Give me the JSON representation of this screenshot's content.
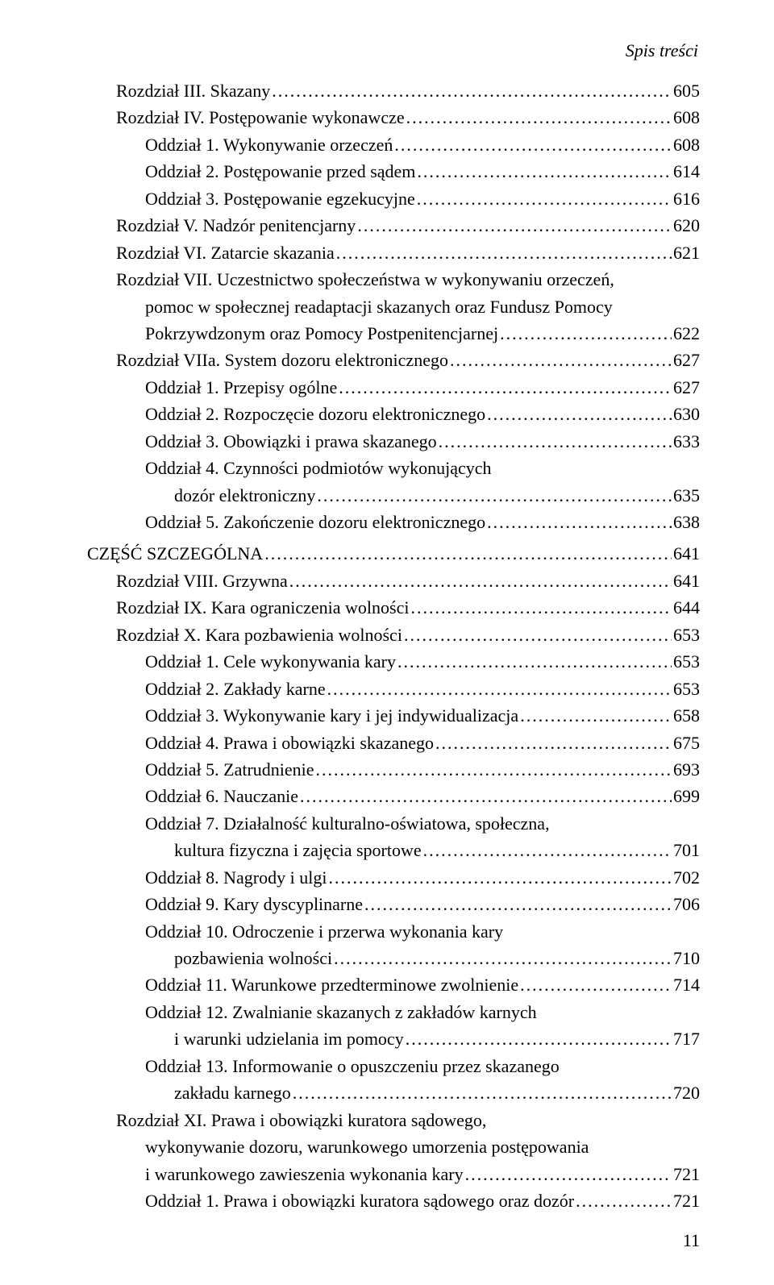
{
  "header": "Spis treści",
  "page_number": "11",
  "entries": [
    {
      "indent": 1,
      "label": "Rozdział III. Skazany",
      "page": "605"
    },
    {
      "indent": 1,
      "label": "Rozdział IV. Postępowanie wykonawcze",
      "page": "608"
    },
    {
      "indent": 2,
      "label": "Oddział 1. Wykonywanie orzeczeń",
      "page": "608"
    },
    {
      "indent": 2,
      "label": "Oddział 2. Postępowanie przed sądem",
      "page": "614"
    },
    {
      "indent": 2,
      "label": "Oddział 3. Postępowanie egzekucyjne",
      "page": "616"
    },
    {
      "indent": 1,
      "label": "Rozdział V. Nadzór penitencjarny",
      "page": "620"
    },
    {
      "indent": 1,
      "label": "Rozdział VI. Zatarcie skazania",
      "page": "621"
    },
    {
      "indent": 1,
      "multiline": true,
      "lines": [
        "Rozdział VII. Uczestnictwo społeczeństwa w wykonywaniu orzeczeń,",
        "pomoc w społecznej readaptacji skazanych oraz Fundusz Pomocy",
        "Pokrzywdzonym oraz Pomocy Postpenitencjarnej"
      ],
      "page": "622"
    },
    {
      "indent": 1,
      "label": "Rozdział VIIa. System dozoru elektronicznego",
      "page": "627"
    },
    {
      "indent": 2,
      "label": "Oddział 1. Przepisy ogólne",
      "page": "627"
    },
    {
      "indent": 2,
      "label": "Oddział 2. Rozpoczęcie dozoru elektronicznego",
      "page": "630"
    },
    {
      "indent": 2,
      "label": "Oddział 3. Obowiązki i prawa skazanego",
      "page": "633"
    },
    {
      "indent": 2,
      "multiline": true,
      "lines": [
        "Oddział 4. Czynności podmiotów wykonujących",
        "dozór elektroniczny"
      ],
      "page": "635"
    },
    {
      "indent": 2,
      "label": "Oddział 5. Zakończenie dozoru elektronicznego",
      "page": "638"
    },
    {
      "indent": 0,
      "label": "CZĘŚĆ SZCZEGÓLNA",
      "page": "641",
      "spaceBefore": true
    },
    {
      "indent": 1,
      "label": "Rozdział VIII. Grzywna",
      "page": "641"
    },
    {
      "indent": 1,
      "label": "Rozdział IX. Kara ograniczenia wolności",
      "page": "644"
    },
    {
      "indent": 1,
      "label": "Rozdział X. Kara pozbawienia wolności",
      "page": "653"
    },
    {
      "indent": 2,
      "label": "Oddział 1. Cele wykonywania kary",
      "page": "653"
    },
    {
      "indent": 2,
      "label": "Oddział 2. Zakłady karne",
      "page": "653"
    },
    {
      "indent": 2,
      "label": "Oddział 3. Wykonywanie kary i jej indywidualizacja",
      "page": "658"
    },
    {
      "indent": 2,
      "label": "Oddział 4. Prawa i obowiązki skazanego",
      "page": "675"
    },
    {
      "indent": 2,
      "label": "Oddział 5. Zatrudnienie",
      "page": "693"
    },
    {
      "indent": 2,
      "label": "Oddział 6. Nauczanie",
      "page": "699"
    },
    {
      "indent": 2,
      "multiline": true,
      "lines": [
        "Oddział 7. Działalność kulturalno-oświatowa, społeczna,",
        "kultura fizyczna i zajęcia sportowe"
      ],
      "page": "701"
    },
    {
      "indent": 2,
      "label": "Oddział 8. Nagrody i ulgi",
      "page": "702"
    },
    {
      "indent": 2,
      "label": "Oddział 9. Kary dyscyplinarne",
      "page": "706"
    },
    {
      "indent": 2,
      "multiline": true,
      "lines": [
        "Oddział 10. Odroczenie i przerwa wykonania kary",
        "pozbawienia wolności"
      ],
      "page": "710"
    },
    {
      "indent": 2,
      "label": "Oddział 11. Warunkowe przedterminowe zwolnienie",
      "page": "714"
    },
    {
      "indent": 2,
      "multiline": true,
      "lines": [
        "Oddział 12. Zwalnianie skazanych z zakładów karnych",
        "i warunki udzielania im pomocy"
      ],
      "page": "717"
    },
    {
      "indent": 2,
      "multiline": true,
      "lines": [
        "Oddział 13. Informowanie o opuszczeniu przez skazanego",
        "zakładu karnego"
      ],
      "page": "720"
    },
    {
      "indent": 1,
      "multiline": true,
      "lines": [
        "Rozdział XI. Prawa i obowiązki kuratora sądowego,",
        "wykonywanie dozoru, warunkowego umorzenia postępowania",
        "i warunkowego zawieszenia wykonania kary"
      ],
      "page": "721"
    },
    {
      "indent": 2,
      "label": "Oddział 1. Prawa i obowiązki kuratora sądowego oraz dozór",
      "page": "721"
    }
  ]
}
